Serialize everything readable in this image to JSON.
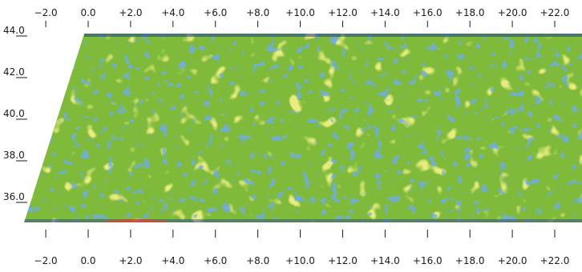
{
  "axes": {
    "longitude_ticks": [
      "−2.0",
      "0.0",
      "+2.0",
      "+4.0",
      "+6.0",
      "+8.0",
      "+10.0",
      "+12.0",
      "+14.0",
      "+16.0",
      "+18.0",
      "+20.0",
      "+22.0"
    ],
    "longitude_values": [
      -2,
      0,
      2,
      4,
      6,
      8,
      10,
      12,
      14,
      16,
      18,
      20,
      22
    ],
    "latitude_ticks": [
      "44.0",
      "42.0",
      "40.0",
      "38.0",
      "36.0"
    ],
    "latitude_values": [
      44,
      42,
      40,
      38,
      36
    ],
    "longitude_range": [
      -2,
      22
    ],
    "latitude_range": [
      35,
      44
    ]
  },
  "swath": {
    "dominant_color": "#7fba3a",
    "highlight_color": "#e8e23a",
    "low_color": "#2f7fc0",
    "edge_color": "#1e3f8a",
    "hot_color": "#e0452a"
  }
}
